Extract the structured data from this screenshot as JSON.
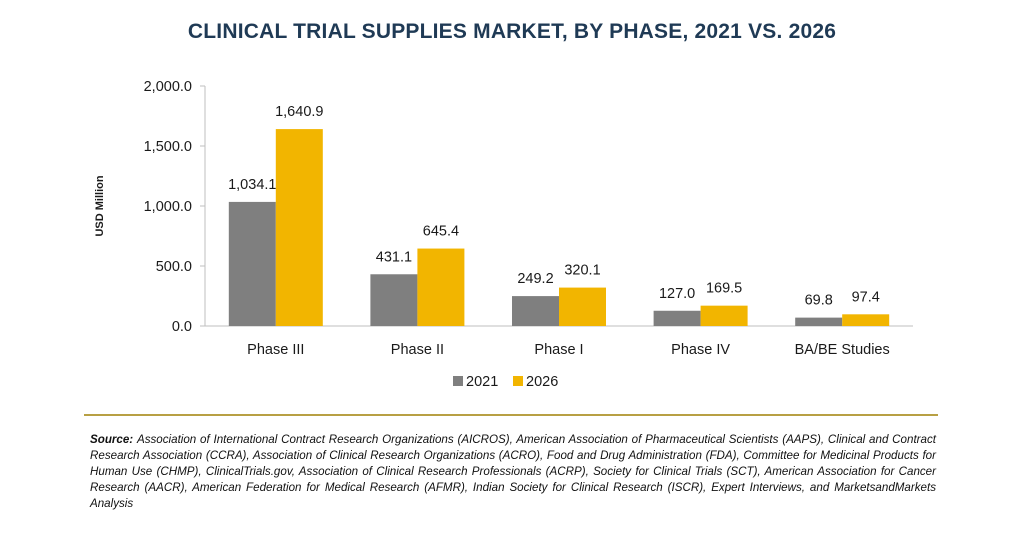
{
  "chart_data": {
    "type": "bar",
    "title": "CLINICAL TRIAL SUPPLIES MARKET, BY PHASE, 2021 VS. 2026",
    "xlabel": "",
    "ylabel": "USD Million",
    "ylim": [
      0,
      2000
    ],
    "yticks": [
      "2,000.0",
      "1,500.0",
      "1,000.0",
      "500.0",
      "0.0"
    ],
    "categories": [
      "Phase III",
      "Phase II",
      "Phase I",
      "Phase IV",
      "BA/BE Studies"
    ],
    "series": [
      {
        "name": "2021",
        "values": [
          1034.1,
          431.1,
          249.2,
          127.0,
          69.8
        ],
        "labels": [
          "1,034.1",
          "431.1",
          "249.2",
          "127.0",
          "69.8"
        ],
        "color": "#7f7f7f"
      },
      {
        "name": "2026",
        "values": [
          1640.9,
          645.4,
          320.1,
          169.5,
          97.4
        ],
        "labels": [
          "1,640.9",
          "645.4",
          "320.1",
          "169.5",
          "97.4"
        ],
        "color": "#f2b500"
      }
    ],
    "grid": false,
    "legend": "bottom-center"
  },
  "source": {
    "prefix": "Source: ",
    "text": "Association of International Contract Research Organizations (AICROS), American Association of Pharmaceutical Scientists (AAPS), Clinical and Contract Research Association (CCRA), Association of Clinical Research Organizations (ACRO), Food and Drug Administration (FDA), Committee for Medicinal Products for Human Use (CHMP), ClinicalTrials.gov, Association of Clinical Research Professionals (ACRP), Society for Clinical Trials (SCT), American Association for Cancer Research (AACR), American Federation for Medical Research (AFMR), Indian Society for Clinical Research (ISCR), Expert Interviews, and MarketsandMarkets Analysis"
  },
  "divider_color": "#b8a044"
}
